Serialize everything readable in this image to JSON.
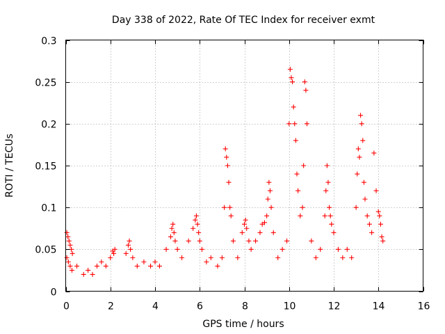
{
  "chart_data": {
    "type": "scatter",
    "title": "Day 338 of 2022, Rate Of TEC Index for receiver exmt",
    "xlabel": "GPS time / hours",
    "ylabel": "ROTI / TECUs",
    "xlim": [
      0,
      16
    ],
    "ylim": [
      0,
      0.3
    ],
    "xticks": [
      0,
      2,
      4,
      6,
      8,
      10,
      12,
      14,
      16
    ],
    "yticks": [
      0,
      0.05,
      0.1,
      0.15,
      0.2,
      0.25,
      0.3
    ],
    "xtick_labels": [
      "0",
      "2",
      "4",
      "6",
      "8",
      "10",
      "12",
      "14",
      "16"
    ],
    "ytick_labels": [
      "0",
      "0.05",
      "0.1",
      "0.15",
      "0.2",
      "0.25",
      "0.3"
    ],
    "grid": true,
    "marker": "+",
    "color": "#ff0000",
    "series": [
      {
        "name": "ROTI",
        "x": [
          0.05,
          0.1,
          0.15,
          0.2,
          0.25,
          0.3,
          0.05,
          0.12,
          0.2,
          0.28,
          0.5,
          0.8,
          1.0,
          1.2,
          1.4,
          1.6,
          1.8,
          2.0,
          2.1,
          2.15,
          2.2,
          2.7,
          2.8,
          2.85,
          2.9,
          3.0,
          3.2,
          3.5,
          3.8,
          4.0,
          4.2,
          4.5,
          4.7,
          4.75,
          4.8,
          4.85,
          4.9,
          5.0,
          5.2,
          5.5,
          5.7,
          5.8,
          5.85,
          5.9,
          5.95,
          6.0,
          6.1,
          6.3,
          6.5,
          6.8,
          7.0,
          7.1,
          7.15,
          7.2,
          7.25,
          7.3,
          7.35,
          7.4,
          7.5,
          7.7,
          7.9,
          8.0,
          8.05,
          8.1,
          8.2,
          8.3,
          8.5,
          8.7,
          8.8,
          8.9,
          9.0,
          9.05,
          9.1,
          9.15,
          9.2,
          9.3,
          9.5,
          9.7,
          9.9,
          10.0,
          10.05,
          10.1,
          10.15,
          10.2,
          10.25,
          10.3,
          10.35,
          10.4,
          10.5,
          10.6,
          10.65,
          10.7,
          10.75,
          10.8,
          11.0,
          11.2,
          11.4,
          11.6,
          11.65,
          11.7,
          11.75,
          11.8,
          11.85,
          11.9,
          12.0,
          12.2,
          12.4,
          12.6,
          12.8,
          13.0,
          13.05,
          13.1,
          13.15,
          13.2,
          13.25,
          13.3,
          13.35,
          13.4,
          13.5,
          13.6,
          13.7,
          13.8,
          13.9,
          14.0,
          14.05,
          14.1,
          14.15,
          14.2
        ],
        "y": [
          0.07,
          0.065,
          0.06,
          0.055,
          0.05,
          0.045,
          0.04,
          0.035,
          0.03,
          0.025,
          0.03,
          0.02,
          0.025,
          0.02,
          0.03,
          0.035,
          0.03,
          0.04,
          0.048,
          0.045,
          0.05,
          0.045,
          0.055,
          0.06,
          0.05,
          0.04,
          0.03,
          0.035,
          0.03,
          0.035,
          0.03,
          0.05,
          0.065,
          0.075,
          0.08,
          0.07,
          0.06,
          0.05,
          0.04,
          0.06,
          0.075,
          0.085,
          0.09,
          0.08,
          0.07,
          0.06,
          0.05,
          0.035,
          0.04,
          0.03,
          0.04,
          0.1,
          0.17,
          0.16,
          0.15,
          0.13,
          0.1,
          0.09,
          0.06,
          0.04,
          0.07,
          0.08,
          0.085,
          0.075,
          0.06,
          0.05,
          0.06,
          0.07,
          0.08,
          0.082,
          0.09,
          0.11,
          0.13,
          0.12,
          0.1,
          0.07,
          0.04,
          0.05,
          0.06,
          0.2,
          0.265,
          0.255,
          0.25,
          0.22,
          0.2,
          0.18,
          0.14,
          0.12,
          0.09,
          0.1,
          0.15,
          0.25,
          0.24,
          0.2,
          0.06,
          0.04,
          0.05,
          0.09,
          0.12,
          0.15,
          0.13,
          0.1,
          0.09,
          0.08,
          0.07,
          0.05,
          0.04,
          0.05,
          0.04,
          0.1,
          0.14,
          0.17,
          0.16,
          0.21,
          0.2,
          0.18,
          0.13,
          0.11,
          0.09,
          0.08,
          0.07,
          0.165,
          0.12,
          0.095,
          0.09,
          0.08,
          0.065,
          0.06
        ]
      }
    ]
  }
}
